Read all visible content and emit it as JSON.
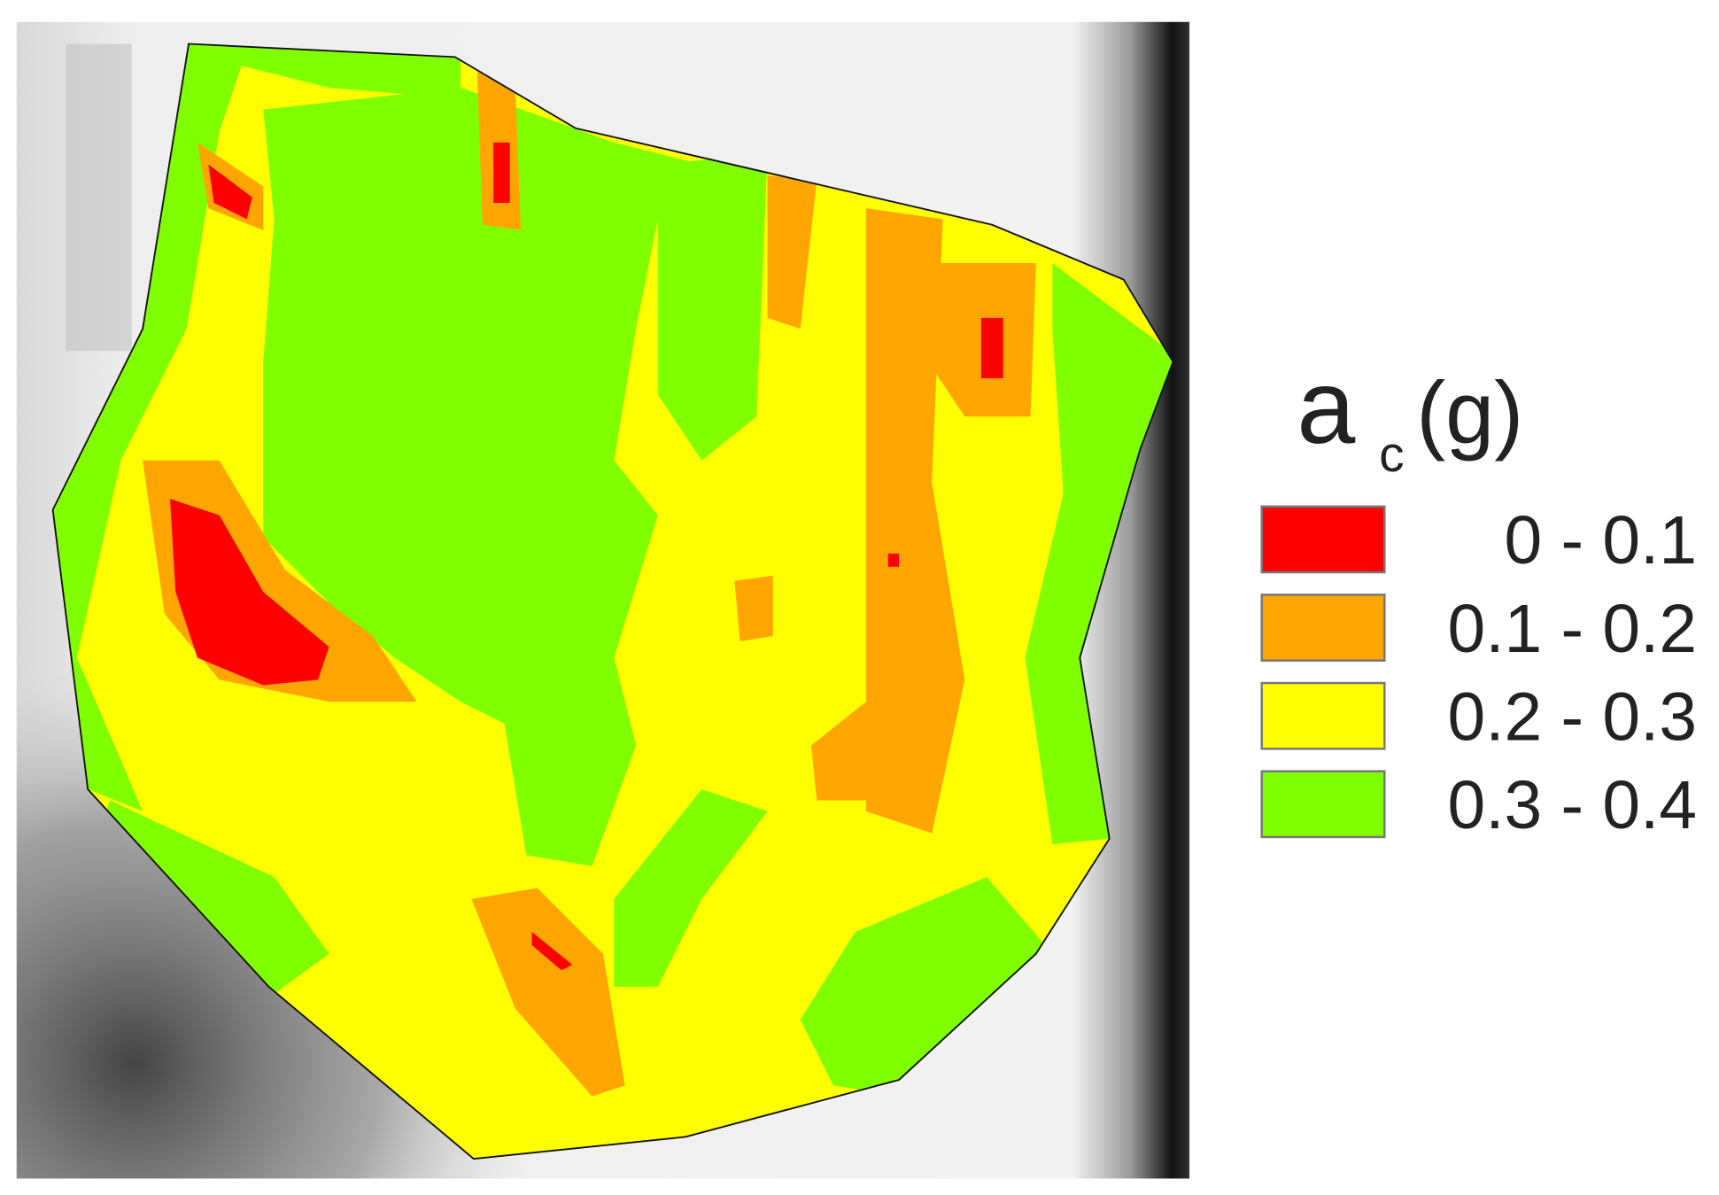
{
  "legend": {
    "title": {
      "symbol": "a",
      "subscript": "c",
      "unit": "(g)"
    },
    "items": [
      {
        "label": "0 - 0.1",
        "color": "#ff0000"
      },
      {
        "label": "0.1 - 0.2",
        "color": "#ffa500"
      },
      {
        "label": "0.2 - 0.3",
        "color": "#ffff00"
      },
      {
        "label": "0.3 - 0.4",
        "color": "#7fff00"
      }
    ]
  }
}
